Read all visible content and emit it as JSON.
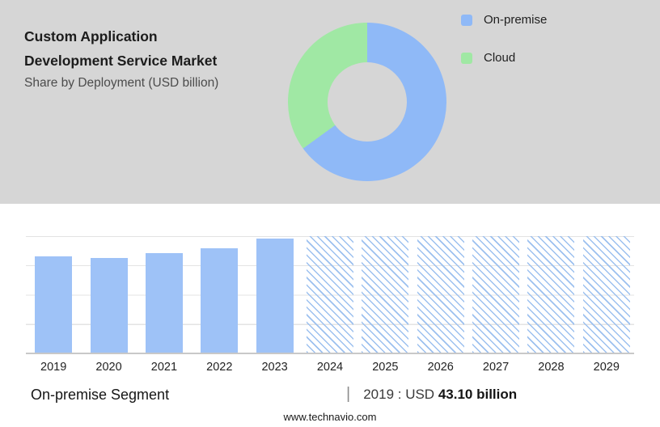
{
  "header": {
    "title_line1": "Custom Application",
    "title_line2": "Development Service Market",
    "subtitle": "Share by Deployment (USD billion)"
  },
  "legend": [
    {
      "label": "On-premise",
      "color": "#8fb9f7"
    },
    {
      "label": "Cloud",
      "color": "#a0e8a4"
    }
  ],
  "chart_data": [
    {
      "type": "pie",
      "style": "donut",
      "labels": [
        "On-premise",
        "Cloud"
      ],
      "values": [
        65,
        35
      ],
      "colors": [
        "#8fb9f7",
        "#a0e8a4"
      ],
      "legend_position": "right",
      "title": "Share by Deployment (USD billion)"
    },
    {
      "type": "bar",
      "categories": [
        "2019",
        "2020",
        "2021",
        "2022",
        "2023",
        "2024",
        "2025",
        "2026",
        "2027",
        "2028",
        "2029"
      ],
      "values": [
        43.1,
        42.2,
        44.3,
        46.6,
        50.8,
        null,
        null,
        null,
        null,
        null,
        null
      ],
      "forecast_categories": [
        "2024",
        "2025",
        "2026",
        "2027",
        "2028",
        "2029"
      ],
      "forecast_style": "hatched-full-height",
      "ylim": [
        0,
        52
      ],
      "grid": true,
      "bar_color": "#9ec2f7",
      "xlabel": "",
      "ylabel": ""
    }
  ],
  "footer": {
    "segment_label": "On-premise Segment",
    "divider": "|",
    "stat_prefix": "2019 : USD",
    "stat_value": "43.10 billion",
    "website": "www.technavio.com"
  }
}
